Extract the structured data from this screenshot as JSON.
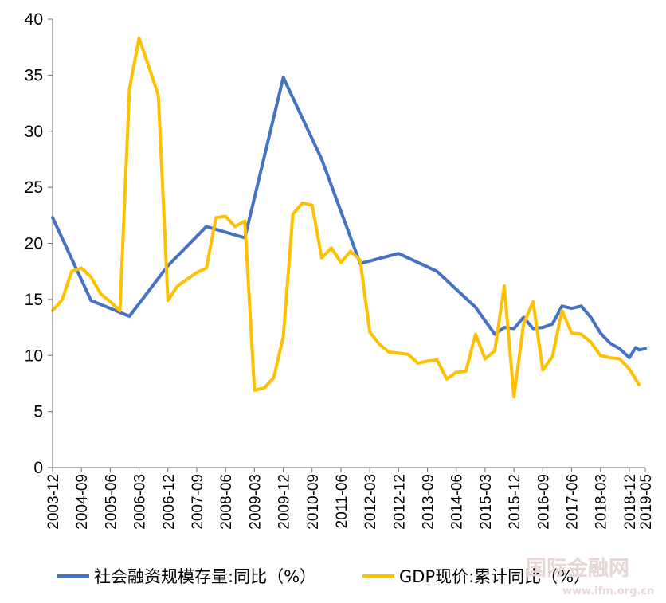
{
  "chart_data": {
    "type": "line",
    "title": "",
    "xlabel": "",
    "ylabel": "",
    "ylim": [
      0,
      40
    ],
    "yticks": [
      0,
      5,
      10,
      15,
      20,
      25,
      30,
      35,
      40
    ],
    "grid": false,
    "legend_position": "bottom",
    "x_tick_labels": [
      "2003-12",
      "2004-09",
      "2005-06",
      "2006-03",
      "2006-12",
      "2007-09",
      "2008-06",
      "2009-03",
      "2009-12",
      "2010-09",
      "2011-06",
      "2012-03",
      "2012-12",
      "2013-09",
      "2014-06",
      "2015-03",
      "2015-12",
      "2016-09",
      "2017-06",
      "2018-03",
      "2018-12",
      "2019-05"
    ],
    "x_start": "2003-12",
    "x_end": "2019-05",
    "series": [
      {
        "name": "社会融资规模存量:同比（%）",
        "color": "#4472C4",
        "points": [
          [
            "2003-12",
            22.3
          ],
          [
            "2004-12",
            14.9
          ],
          [
            "2005-12",
            13.5
          ],
          [
            "2006-12",
            18.0
          ],
          [
            "2007-12",
            21.5
          ],
          [
            "2008-12",
            20.5
          ],
          [
            "2009-12",
            34.8
          ],
          [
            "2010-12",
            27.5
          ],
          [
            "2011-12",
            18.2
          ],
          [
            "2012-12",
            19.1
          ],
          [
            "2013-12",
            17.5
          ],
          [
            "2014-12",
            14.3
          ],
          [
            "2015-06",
            11.9
          ],
          [
            "2015-09",
            12.5
          ],
          [
            "2015-12",
            12.4
          ],
          [
            "2016-03",
            13.4
          ],
          [
            "2016-06",
            12.4
          ],
          [
            "2016-09",
            12.5
          ],
          [
            "2016-12",
            12.8
          ],
          [
            "2017-03",
            14.4
          ],
          [
            "2017-06",
            14.2
          ],
          [
            "2017-09",
            14.4
          ],
          [
            "2017-12",
            13.4
          ],
          [
            "2018-03",
            12.0
          ],
          [
            "2018-06",
            11.1
          ],
          [
            "2018-09",
            10.6
          ],
          [
            "2018-12",
            9.8
          ],
          [
            "2019-02",
            10.7
          ],
          [
            "2019-03",
            10.5
          ],
          [
            "2019-05",
            10.6
          ]
        ]
      },
      {
        "name": "GDP现价:累计同比（%）",
        "color": "#FFC000",
        "points": [
          [
            "2003-12",
            14.0
          ],
          [
            "2004-03",
            15.0
          ],
          [
            "2004-06",
            17.5
          ],
          [
            "2004-09",
            17.8
          ],
          [
            "2004-12",
            17.0
          ],
          [
            "2005-03",
            15.5
          ],
          [
            "2005-06",
            14.8
          ],
          [
            "2005-09",
            14.0
          ],
          [
            "2005-12",
            33.8
          ],
          [
            "2006-03",
            38.3
          ],
          [
            "2006-06",
            35.8
          ],
          [
            "2006-09",
            33.2
          ],
          [
            "2006-12",
            14.9
          ],
          [
            "2007-03",
            16.2
          ],
          [
            "2007-06",
            16.8
          ],
          [
            "2007-09",
            17.4
          ],
          [
            "2007-12",
            17.8
          ],
          [
            "2008-03",
            22.3
          ],
          [
            "2008-06",
            22.4
          ],
          [
            "2008-09",
            21.5
          ],
          [
            "2008-12",
            22.0
          ],
          [
            "2009-03",
            6.9
          ],
          [
            "2009-06",
            7.1
          ],
          [
            "2009-09",
            8.0
          ],
          [
            "2009-12",
            11.7
          ],
          [
            "2010-03",
            22.6
          ],
          [
            "2010-06",
            23.6
          ],
          [
            "2010-09",
            23.4
          ],
          [
            "2010-12",
            18.7
          ],
          [
            "2011-03",
            19.6
          ],
          [
            "2011-06",
            18.3
          ],
          [
            "2011-09",
            19.3
          ],
          [
            "2011-12",
            18.5
          ],
          [
            "2012-03",
            12.1
          ],
          [
            "2012-06",
            11.0
          ],
          [
            "2012-09",
            10.3
          ],
          [
            "2012-12",
            10.2
          ],
          [
            "2013-03",
            10.1
          ],
          [
            "2013-06",
            9.3
          ],
          [
            "2013-09",
            9.5
          ],
          [
            "2013-12",
            9.6
          ],
          [
            "2014-03",
            7.9
          ],
          [
            "2014-06",
            8.5
          ],
          [
            "2014-09",
            8.6
          ],
          [
            "2014-12",
            11.9
          ],
          [
            "2015-03",
            9.7
          ],
          [
            "2015-06",
            10.4
          ],
          [
            "2015-09",
            16.2
          ],
          [
            "2015-12",
            6.3
          ],
          [
            "2016-03",
            12.8
          ],
          [
            "2016-06",
            14.8
          ],
          [
            "2016-09",
            8.7
          ],
          [
            "2016-12",
            9.9
          ],
          [
            "2017-03",
            14.0
          ],
          [
            "2017-06",
            12.0
          ],
          [
            "2017-09",
            11.9
          ],
          [
            "2017-12",
            11.2
          ],
          [
            "2018-03",
            10.0
          ],
          [
            "2018-06",
            9.8
          ],
          [
            "2018-09",
            9.7
          ],
          [
            "2018-12",
            8.8
          ],
          [
            "2019-03",
            7.4
          ]
        ]
      }
    ]
  },
  "watermark": {
    "text": "国际金融网",
    "url": "www.ifm.org.cn"
  }
}
